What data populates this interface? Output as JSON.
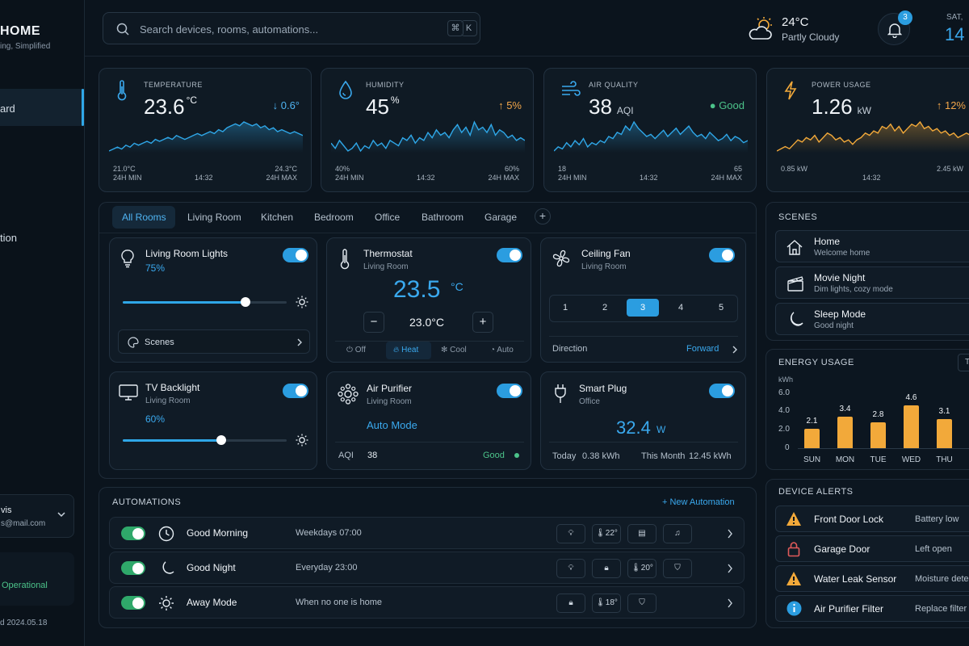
{
  "brand": {
    "name": "HOME",
    "tagline": "ing, Simplified"
  },
  "sidebar": {
    "items": [
      {
        "label": "ard",
        "top": 127
      },
      {
        "label": "tion",
        "top": 287
      }
    ],
    "user": {
      "name": "vis",
      "email": "s@mail.com"
    },
    "status": {
      "text": "Operational"
    },
    "version": "d 2024.05.18"
  },
  "search": {
    "placeholder": "Search devices, rooms, automations...",
    "shortcut": [
      "⌘",
      "K"
    ]
  },
  "weather": {
    "temp": "24°C",
    "condition": "Partly Cloudy"
  },
  "notifications": {
    "count": "3"
  },
  "date": {
    "day": "SAT,",
    "num": "14"
  },
  "metrics": [
    {
      "label": "TEMPERATURE",
      "value": "23.6",
      "unit_sup": "°C",
      "unit": "",
      "delta": "↓ 0.6°",
      "delta_color": "#4fb4f2",
      "min": "21.0°C",
      "time": "14:32",
      "max": "24.3°C",
      "min_label": "24H MIN",
      "max_label": "24H MAX",
      "line_color": "#2fa7e8",
      "series": [
        3,
        4,
        5,
        4,
        6,
        5,
        7,
        6,
        7,
        8,
        7,
        9,
        8,
        9,
        10,
        9,
        11,
        10,
        9,
        10,
        11,
        12,
        11,
        12,
        13,
        12,
        14,
        13,
        15,
        16,
        17,
        16,
        18,
        17,
        16,
        17,
        15,
        16,
        14,
        15,
        13,
        14,
        13,
        12,
        13,
        12,
        11
      ]
    },
    {
      "label": "HUMIDITY",
      "value": "45",
      "unit_sup": "%",
      "unit": "",
      "delta": "↑ 5%",
      "delta_color": "#f2a64a",
      "min": "40%",
      "time": "14:32",
      "max": "60%",
      "min_label": "24H MIN",
      "max_label": "24H MAX",
      "line_color": "#2fa7e8",
      "series": [
        8,
        6,
        9,
        7,
        5,
        6,
        8,
        5,
        7,
        6,
        9,
        7,
        8,
        6,
        9,
        8,
        7,
        10,
        9,
        11,
        8,
        10,
        9,
        12,
        10,
        13,
        11,
        12,
        10,
        13,
        15,
        12,
        14,
        11,
        16,
        13,
        14,
        12,
        15,
        11,
        13,
        12,
        10,
        11,
        9,
        10,
        9
      ]
    },
    {
      "label": "AIR QUALITY",
      "value": "38",
      "unit_sup": "",
      "unit": "AQI",
      "delta": "● Good",
      "delta_color": "#4cc38a",
      "min": "18",
      "time": "14:32",
      "max": "65",
      "min_label": "24H MIN",
      "max_label": "24H MAX",
      "line_color": "#2fa7e8",
      "series": [
        4,
        6,
        5,
        8,
        6,
        9,
        7,
        10,
        6,
        8,
        7,
        9,
        8,
        11,
        10,
        13,
        12,
        16,
        14,
        18,
        15,
        13,
        11,
        12,
        10,
        12,
        14,
        11,
        13,
        15,
        12,
        14,
        16,
        13,
        11,
        12,
        10,
        13,
        11,
        9,
        10,
        12,
        9,
        11,
        10,
        8,
        9
      ]
    },
    {
      "label": "POWER USAGE",
      "value": "1.26",
      "unit_sup": "",
      "unit": "kW",
      "delta": "↑ 12%",
      "delta_color": "#f2a64a",
      "min": "0.85 kW",
      "time": "14:32",
      "max": "2.45 kW",
      "min_label": "",
      "max_label": "",
      "line_color": "#f2a93a",
      "series": [
        4,
        5,
        6,
        5,
        7,
        9,
        8,
        10,
        9,
        11,
        8,
        10,
        12,
        11,
        9,
        10,
        8,
        9,
        7,
        9,
        10,
        12,
        11,
        13,
        12,
        15,
        14,
        16,
        13,
        15,
        12,
        14,
        16,
        15,
        17,
        14,
        15,
        13,
        14,
        12,
        13,
        11,
        12,
        10,
        11,
        12,
        11
      ]
    }
  ],
  "rooms": {
    "tabs": [
      "All Rooms",
      "Living Room",
      "Kitchen",
      "Bedroom",
      "Office",
      "Bathroom",
      "Garage"
    ],
    "add": "+"
  },
  "devices": {
    "lights": {
      "title": "Living Room Lights",
      "level": "75%",
      "level_value": 0.75,
      "scenes": "Scenes"
    },
    "thermostat": {
      "title": "Thermostat",
      "room": "Living Room",
      "current": "23.5",
      "unit": "°C",
      "target": "23.0°C",
      "minus": "−",
      "plus": "+",
      "modes": [
        "Off",
        "Heat",
        "Cool",
        "Auto"
      ]
    },
    "fan": {
      "title": "Ceiling Fan",
      "room": "Living Room",
      "speeds": [
        "1",
        "2",
        "3",
        "4",
        "5"
      ],
      "direction_label": "Direction",
      "direction": "Forward"
    },
    "tv": {
      "title": "TV Backlight",
      "room": "Living Room",
      "level": "60%",
      "level_value": 0.6
    },
    "purifier": {
      "title": "Air Purifier",
      "room": "Living Room",
      "mode": "Auto Mode",
      "aqi_label": "AQI",
      "aqi": "38",
      "status": "Good"
    },
    "plug": {
      "title": "Smart Plug",
      "room": "Office",
      "value": "32.4",
      "unit": "W",
      "today_label": "Today",
      "today": "0.38 kWh",
      "month_label": "This Month",
      "month": "12.45 kWh"
    }
  },
  "automations": {
    "title": "AUTOMATIONS",
    "new": "+ New Automation",
    "rows": [
      {
        "name": "Good Morning",
        "schedule": "Weekdays 07:00"
      },
      {
        "name": "Good Night",
        "schedule": "Everyday 23:00"
      },
      {
        "name": "Away Mode",
        "schedule": "When no one is home"
      }
    ],
    "chip_temps": [
      "22°",
      "20°",
      "18°"
    ]
  },
  "scenes": {
    "title": "SCENES",
    "items": [
      {
        "name": "Home",
        "desc": "Welcome home"
      },
      {
        "name": "Movie Night",
        "desc": "Dim lights, cozy mode"
      },
      {
        "name": "Sleep Mode",
        "desc": "Good night"
      }
    ]
  },
  "energy": {
    "title": "ENERGY USAGE",
    "range_btn": "T",
    "unit": "kWh",
    "yticks": [
      "6.0",
      "4.0",
      "2.0",
      "0"
    ]
  },
  "chart_data": {
    "type": "bar",
    "categories": [
      "SUN",
      "MON",
      "TUE",
      "WED",
      "THU"
    ],
    "values": [
      2.1,
      3.4,
      2.8,
      4.6,
      3.1
    ],
    "title": "ENERGY USAGE",
    "ylabel": "kWh",
    "ylim": [
      0,
      6
    ],
    "color": "#f2a93a"
  },
  "alerts": {
    "title": "DEVICE ALERTS",
    "items": [
      {
        "name": "Front Door Lock",
        "status": "Battery low"
      },
      {
        "name": "Garage Door",
        "status": "Left open"
      },
      {
        "name": "Water Leak Sensor",
        "status": "Moisture dete"
      },
      {
        "name": "Air Purifier Filter",
        "status": "Replace filter"
      }
    ]
  }
}
